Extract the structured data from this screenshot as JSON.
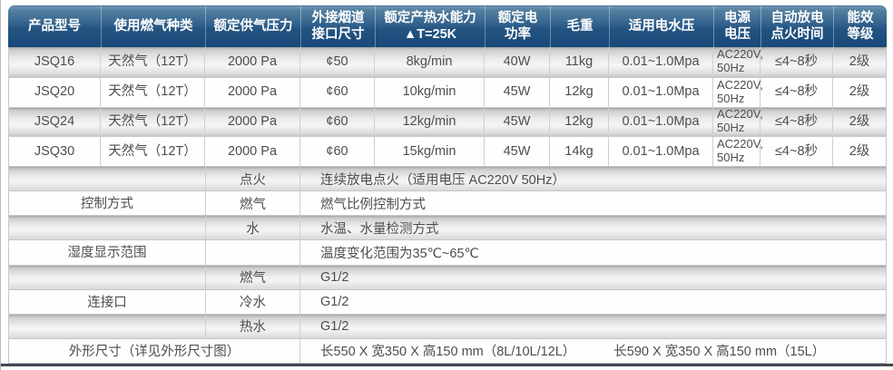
{
  "table": {
    "header": [
      {
        "id": "model",
        "label": "产品型号"
      },
      {
        "id": "gas-type",
        "label": "使用燃气种类"
      },
      {
        "id": "gas-pressure",
        "label": "额定供气压力"
      },
      {
        "id": "flue-size",
        "label": "外接烟道\n接口尺寸"
      },
      {
        "id": "hot-water-capacity",
        "label": "额定产热水能力\n▲T=25K"
      },
      {
        "id": "electric-power",
        "label": "额定电\n功率"
      },
      {
        "id": "gross-weight",
        "label": "毛重"
      },
      {
        "id": "water-pressure",
        "label": "适用电水压"
      },
      {
        "id": "voltage",
        "label": "电源\n电压"
      },
      {
        "id": "ignition-time",
        "label": "自动放电\n点火时间"
      },
      {
        "id": "energy-rating",
        "label": "能效\n等级"
      }
    ],
    "rows": [
      [
        "JSQ16",
        "天然气（12T）",
        "2000 Pa",
        "¢50",
        "8kg/min",
        "40W",
        "11kg",
        "0.01~1.0Mpa",
        "AC220V,\n50Hz",
        "≤4~8秒",
        "2级"
      ],
      [
        "JSQ20",
        "天然气（12T）",
        "2000 Pa",
        "¢60",
        "10kg/min",
        "45W",
        "12kg",
        "0.01~1.0Mpa",
        "AC220V,\n50Hz",
        "≤4~8秒",
        "2级"
      ],
      [
        "JSQ24",
        "天然气（12T）",
        "2000 Pa",
        "¢60",
        "12kg/min",
        "45W",
        "12kg",
        "0.01~1.0Mpa",
        "AC220V,\n50Hz",
        "≤4~8秒",
        "2级"
      ],
      [
        "JSQ30",
        "天然气（12T）",
        "2000 Pa",
        "¢60",
        "15kg/min",
        "45W",
        "14kg",
        "0.01~1.0Mpa",
        "AC220V,\n50Hz",
        "≤4~8秒",
        "2级"
      ]
    ]
  },
  "details": {
    "groups": [
      {
        "id": "control-method",
        "label": "控制方式",
        "rows": [
          {
            "sub": "点火",
            "value": "连续放电点火（适用电压 AC220V  50Hz）"
          },
          {
            "sub": "燃气",
            "value": "燃气比例控制方式"
          },
          {
            "sub": "水",
            "value": "水温、水量检测方式"
          }
        ]
      },
      {
        "id": "display-range",
        "label": "湿度显示范围",
        "rows": [
          {
            "sub": "",
            "value": "温度变化范围为35℃~65℃"
          }
        ]
      },
      {
        "id": "connections",
        "label": "连接口",
        "rows": [
          {
            "sub": "燃气",
            "value": "G1/2"
          },
          {
            "sub": "冷水",
            "value": "G1/2"
          },
          {
            "sub": "热水",
            "value": "G1/2"
          }
        ]
      }
    ],
    "dimensions": {
      "label": "外形尺寸（详见外形尺寸图）",
      "values": [
        "长550 X 宽350 X 高150 mm（8L/10L/12L）",
        "长590 X 宽350 X 高150 mm（15L）"
      ]
    }
  },
  "colors": {
    "header_top": "#6e94b4",
    "header_mid": "#2f5f8c",
    "header_bottom": "#174a7a",
    "header_text": "#ffffff",
    "stripe_dark": "#c6c6c6",
    "stripe_light": "#f5f5f5",
    "bottom_bar": "#3e4a54"
  }
}
